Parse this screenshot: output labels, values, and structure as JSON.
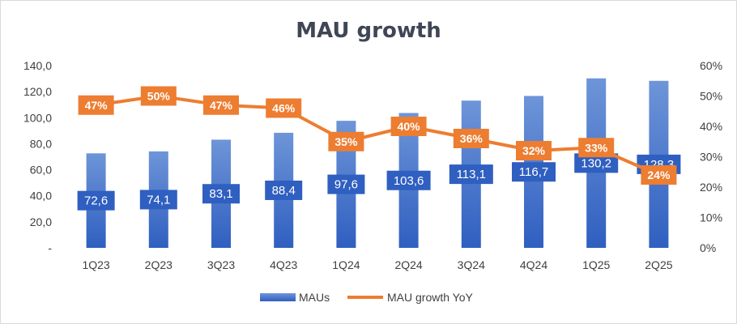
{
  "chart_data": {
    "type": "bar+line",
    "title": "MAU growth",
    "categories": [
      "1Q23",
      "2Q23",
      "3Q23",
      "4Q23",
      "1Q24",
      "2Q24",
      "3Q24",
      "4Q24",
      "1Q25",
      "2Q25"
    ],
    "series": [
      {
        "name": "MAUs",
        "type": "bar",
        "axis": "left",
        "values": [
          72.6,
          74.1,
          83.1,
          88.4,
          97.6,
          103.6,
          113.1,
          116.7,
          130.2,
          128.3
        ],
        "labels": [
          "72,6",
          "74,1",
          "83,1",
          "88,4",
          "97,6",
          "103,6",
          "113,1",
          "116,7",
          "130,2",
          "128,3"
        ]
      },
      {
        "name": "MAU growth YoY",
        "type": "line",
        "axis": "right",
        "values": [
          47,
          50,
          47,
          46,
          35,
          40,
          36,
          32,
          33,
          24
        ],
        "labels": [
          "47%",
          "50%",
          "47%",
          "46%",
          "35%",
          "40%",
          "36%",
          "32%",
          "33%",
          "24%"
        ]
      }
    ],
    "y_left": {
      "min": 0,
      "max": 140,
      "step": 20,
      "tick_labels": [
        "-",
        "20,0",
        "40,0",
        "60,0",
        "80,0",
        "100,0",
        "120,0",
        "140,0"
      ]
    },
    "y_right": {
      "min": 0,
      "max": 60,
      "step": 10,
      "tick_labels": [
        "0%",
        "10%",
        "20%",
        "30%",
        "40%",
        "50%",
        "60%"
      ]
    },
    "legend": [
      "MAUs",
      "MAU growth YoY"
    ],
    "legend_position": "bottom",
    "grid": false
  },
  "colors": {
    "bar_top": "#6e95d8",
    "bar_bottom": "#2f5fc0",
    "line": "#ed7d31",
    "title": "#3f4656"
  }
}
